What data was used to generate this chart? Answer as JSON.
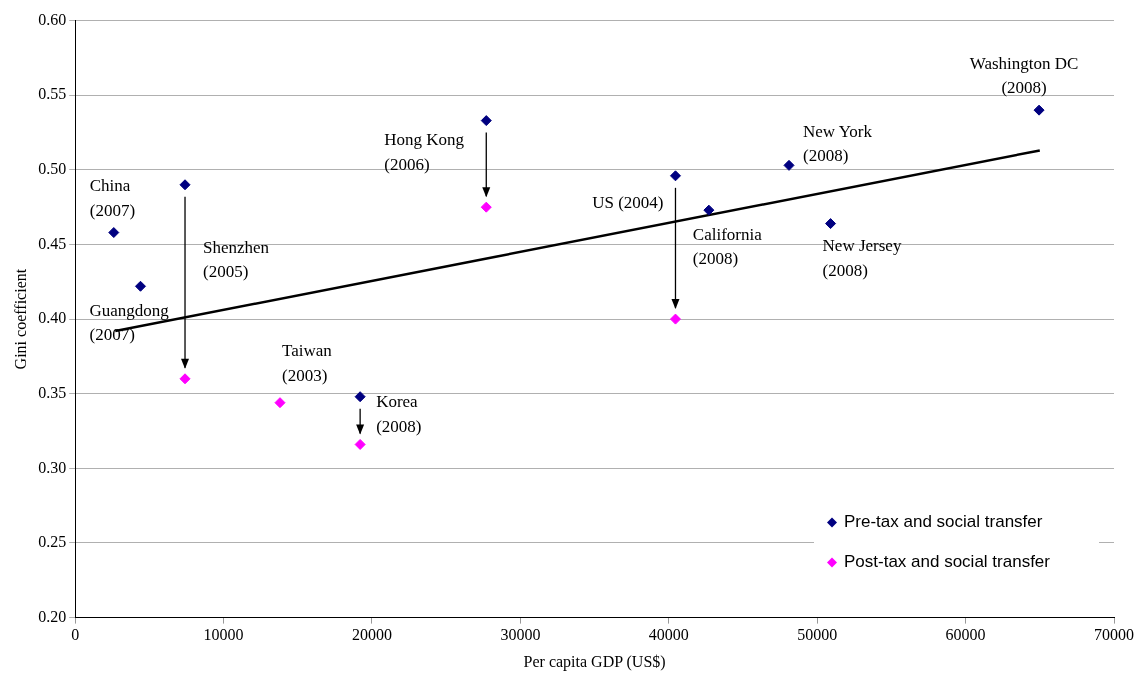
{
  "chart_data": {
    "type": "scatter",
    "xlabel": "Per capita GDP (US$)",
    "ylabel": "Gini coefficient",
    "series": [
      {
        "name": "Pre-tax and social transfer",
        "type": "scatter",
        "color": "#000080",
        "x": [
          2600,
          4400,
          7400,
          19200,
          27700,
          40450,
          42700,
          48100,
          50900,
          64950
        ],
        "values": [
          0.458,
          0.422,
          0.49,
          0.348,
          0.533,
          0.496,
          0.473,
          0.503,
          0.464,
          0.54
        ]
      },
      {
        "name": "Post-tax and social transfer",
        "type": "scatter",
        "color": "#ff00ff",
        "x": [
          7400,
          13800,
          19200,
          27700,
          40450
        ],
        "values": [
          0.36,
          0.344,
          0.316,
          0.475,
          0.4
        ]
      },
      {
        "type": "line",
        "color": "#000000",
        "marker": "none",
        "x": [
          2700,
          65000
        ],
        "values": [
          0.392,
          0.513
        ]
      }
    ],
    "xlim": [
      0,
      70000
    ],
    "xticks": [
      0,
      10000,
      20000,
      30000,
      40000,
      50000,
      60000,
      70000
    ],
    "ylim": [
      0.2,
      0.6
    ],
    "yticks": [
      {
        "value": 0.2,
        "label": "0.20"
      },
      {
        "value": 0.25,
        "label": "0.25"
      },
      {
        "value": 0.3,
        "label": "0.30"
      },
      {
        "value": 0.35,
        "label": "0.35"
      },
      {
        "value": 0.4,
        "label": "0.40"
      },
      {
        "value": 0.45,
        "label": "0.45"
      },
      {
        "value": 0.5,
        "label": "0.50"
      },
      {
        "value": 0.55,
        "label": "0.55"
      },
      {
        "value": 0.6,
        "label": "0.60"
      }
    ],
    "grid": "y",
    "legend": "bottom right",
    "marker": "diamond",
    "annotations": [
      {
        "text": "China\n(2007)",
        "x": 2600,
        "y": 0.458
      },
      {
        "text": "Guangdong\n(2007)",
        "x": 4400,
        "y": 0.422
      },
      "Shenzhen\n(2005)",
      {
        "text": "Hong Kong\n(2006)",
        "x": 27700,
        "y": 0.533
      },
      {
        "text": "Taiwan\n(2003)",
        "x": 13800,
        "y": 0.344
      },
      {
        "text": "Korea\n(2008)",
        "x": 19200,
        "y": 0.348
      },
      {
        "text": "US (2004)",
        "x": 40450,
        "y": 0.496
      },
      {
        "text": "California\n(2008)",
        "x": 42700,
        "y": 0.473
      },
      {
        "text": "New York\n(2008)",
        "x": 48100,
        "y": 0.503
      },
      {
        "text": "New Jersey\n(2008)",
        "x": 50900,
        "y": 0.464
      },
      {
        "text": "Washington DC\n(2008)",
        "x": 64950,
        "y": 0.54
      }
    ]
  }
}
